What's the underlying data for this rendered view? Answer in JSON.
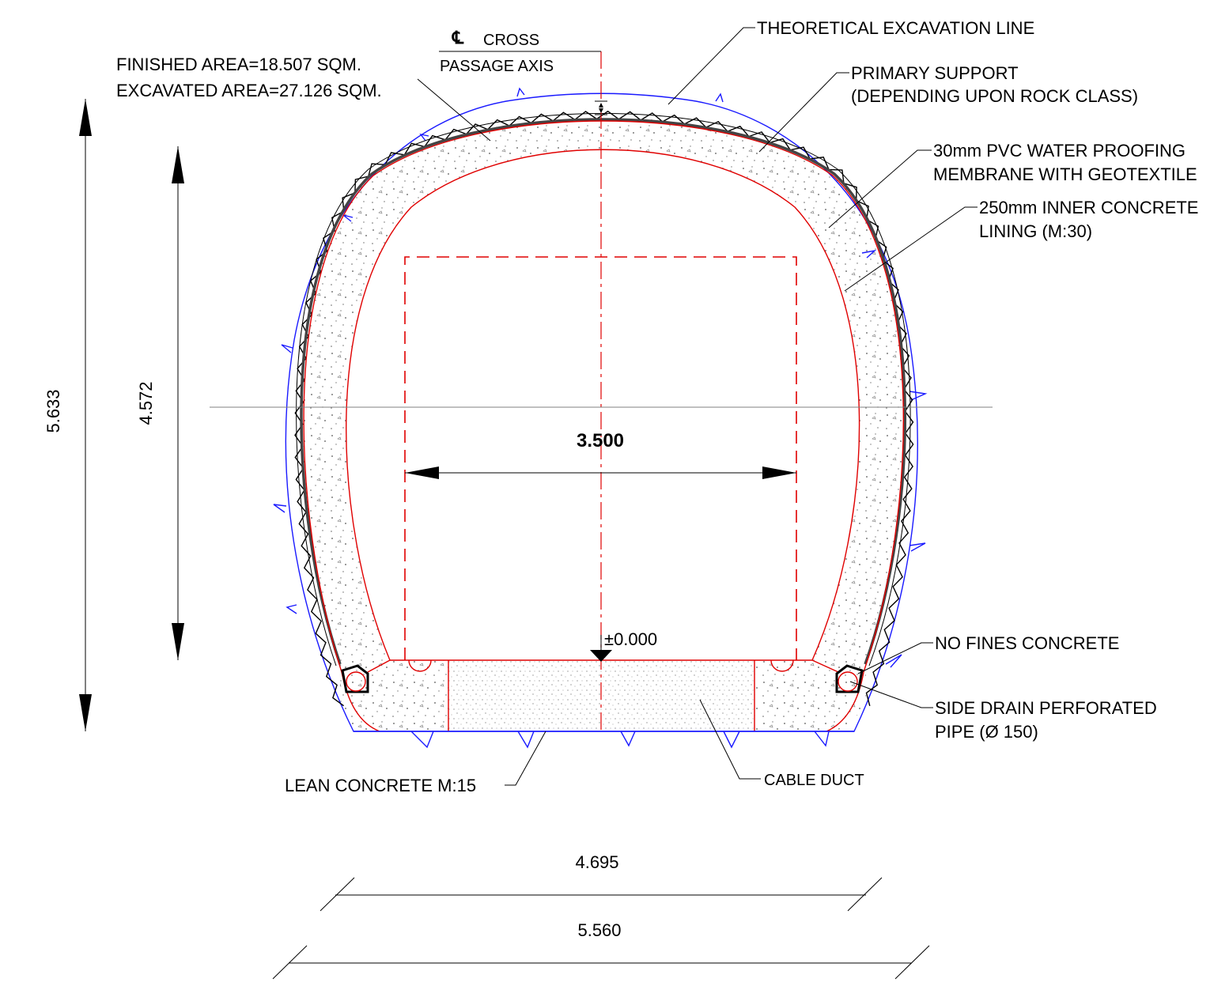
{
  "title": "",
  "labels": {
    "centerline_symbol": "℄",
    "centerline_line1": "CROSS",
    "centerline_line2": "PASSAGE AXIS",
    "finished_area": "FINISHED AREA=18.507 SQM.",
    "excavated_area": "EXCAVATED AREA=27.126 SQM.",
    "theoretical_excavation": "THEORETICAL EXCAVATION LINE",
    "primary_support_1": "PRIMARY SUPPORT",
    "primary_support_2": "(DEPENDING UPON ROCK CLASS)",
    "membrane_1": "30mm PVC WATER PROOFING",
    "membrane_2": "MEMBRANE WITH GEOTEXTILE",
    "lining_1": "250mm INNER CONCRETE",
    "lining_2": "LINING (M:30)",
    "no_fines": "NO FINES CONCRETE",
    "side_drain_1": "SIDE DRAIN PERFORATED",
    "side_drain_2": "PIPE (Ø 150)",
    "lean_concrete": "LEAN CONCRETE M:15",
    "cable_duct": "CABLE DUCT",
    "level": "±0.000"
  },
  "dimensions": {
    "total_height": "5.633",
    "inner_height": "4.572",
    "clear_width": "3.500",
    "inner_base_width": "4.695",
    "outer_base_width": "5.560"
  },
  "colors": {
    "ink": "#000000",
    "lining": "#e00000",
    "excavation": "#1a1aff",
    "reference": "#808080",
    "concrete_fill": "#f2f2f2"
  }
}
